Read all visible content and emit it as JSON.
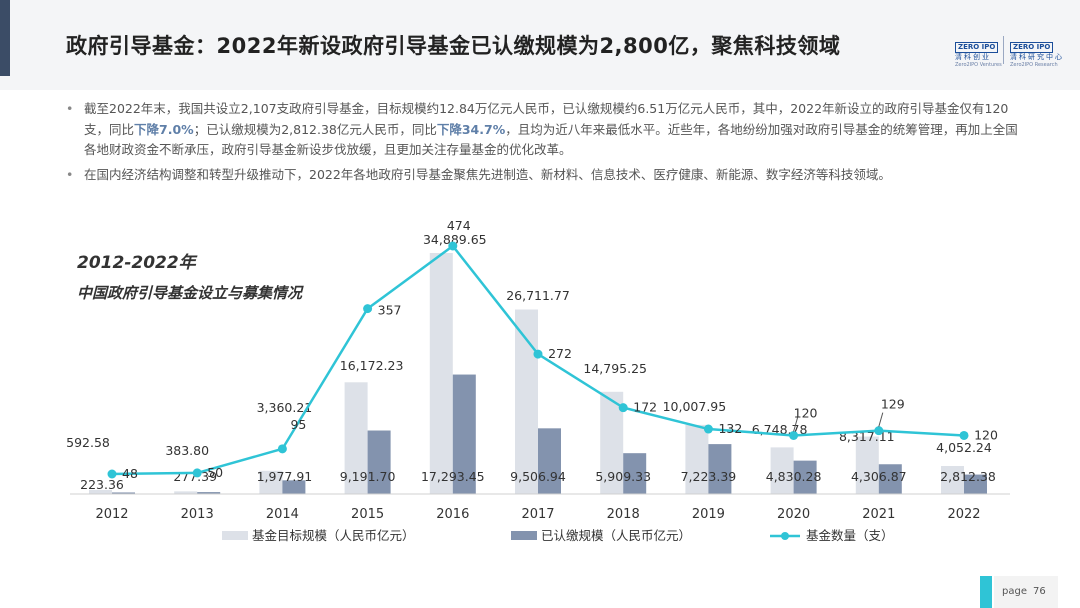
{
  "header": {
    "title": "政府引导基金：2022年新设政府引导基金已认缴规模为2,800亿，聚焦科技领域",
    "logo1": {
      "box": "ZERO IPO",
      "cn": "清科创业",
      "en": "Zero2IPO Ventures"
    },
    "logo2": {
      "box": "ZERO IPO",
      "cn": "清科研究中心",
      "en": "Zero2IPO Research"
    }
  },
  "bullets": {
    "b1_p1": "截至2022年末，我国共设立2,107支政府引导基金，目标规模约12.84万亿元人民币，已认缴规模约6.51万亿元人民币，其中，2022年新设立的政府引导基金仅有120支，同比",
    "b1_h1": "下降7.0%",
    "b1_p2": "；已认缴规模为2,812.38亿元人民币，同比",
    "b1_h2": "下降34.7%",
    "b1_p3": "，且均为近八年来最低水平。近些年，各地纷纷加强对政府引导基金的统筹管理，再加上全国各地财政资金不断承压，政府引导基金新设步伐放缓，且更加关注存量基金的优化改革。",
    "b2": "在国内经济结构调整和转型升级推动下，2022年各地政府引导基金聚焦先进制造、新材料、信息技术、医疗健康、新能源、数字经济等科技领域。"
  },
  "chart_data": {
    "type": "bar",
    "title_line1": "2012-2022年",
    "title_line2": "中国政府引导基金设立与募集情况",
    "categories": [
      "2012",
      "2013",
      "2014",
      "2015",
      "2016",
      "2017",
      "2018",
      "2019",
      "2020",
      "2021",
      "2022"
    ],
    "series": [
      {
        "name": "基金目标规模（人民币亿元）",
        "type": "bar",
        "color": "#dde1e8",
        "values": [
          592.58,
          383.8,
          3360.21,
          16172.23,
          34889.65,
          26711.77,
          14795.25,
          10007.95,
          6748.78,
          8317.11,
          4052.24
        ],
        "labels": [
          "592.58",
          "383.80",
          "3,360.21",
          "16,172.23",
          "34,889.65",
          "26,711.77",
          "14,795.25",
          "10,007.95",
          "6,748.78",
          "8,317.11",
          "4,052.24"
        ]
      },
      {
        "name": "已认缴规模（人民币亿元）",
        "type": "bar",
        "color": "#8393ae",
        "values": [
          223.36,
          277.39,
          1977.91,
          9191.7,
          17293.45,
          9506.94,
          5909.33,
          7223.39,
          4830.28,
          4306.87,
          2812.38
        ],
        "labels": [
          "223.36",
          "277.39",
          "1,977.91",
          "9,191.70",
          "17,293.45",
          "9,506.94",
          "5,909.33",
          "7,223.39",
          "4,830.28",
          "4,306.87",
          "2,812.38"
        ]
      },
      {
        "name": "基金数量（支）",
        "type": "line",
        "color": "#2fc4d6",
        "values": [
          48,
          50,
          95,
          357,
          474,
          272,
          172,
          132,
          120,
          129,
          120
        ],
        "labels": [
          "48",
          "50",
          "95",
          "357",
          "474",
          "272",
          "172",
          "132",
          "120",
          "129",
          "120"
        ]
      }
    ],
    "legend_position": "bottom",
    "grid": false
  },
  "page": {
    "label": "page",
    "number": "76"
  }
}
